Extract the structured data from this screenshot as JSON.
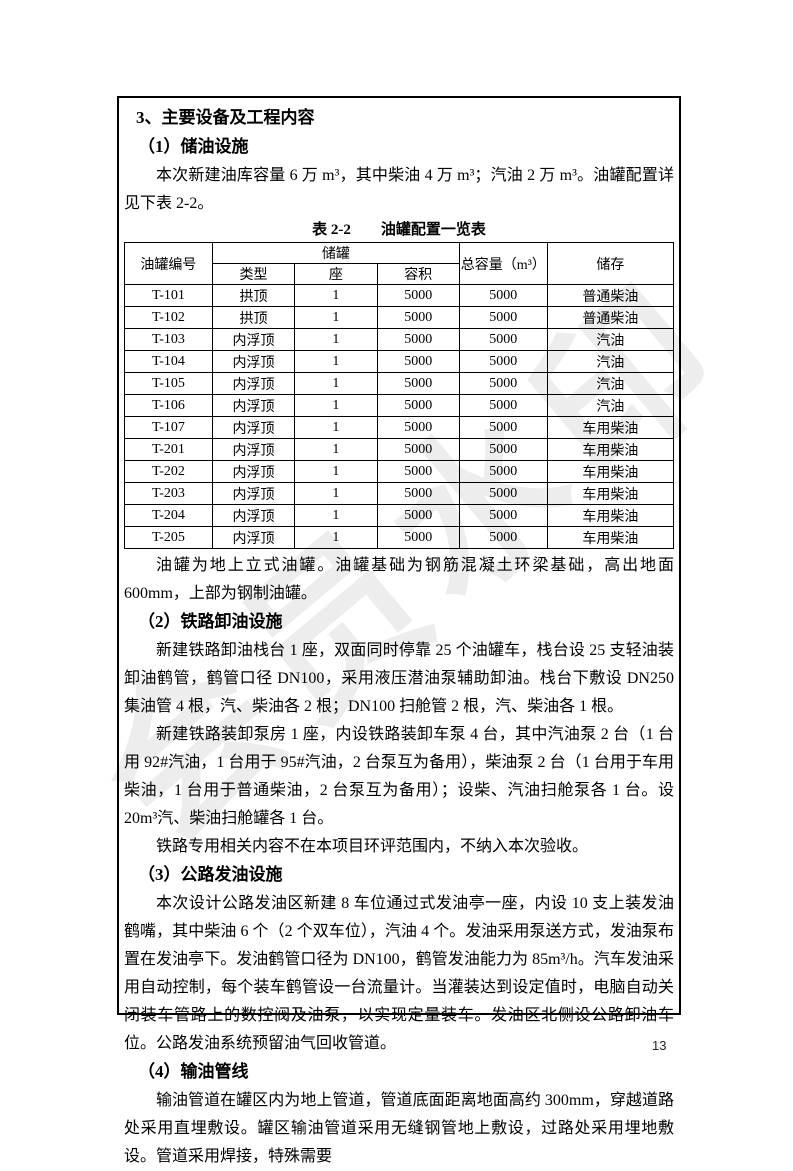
{
  "page": {
    "number": "13",
    "watermark": "会员水印"
  },
  "doc": {
    "section3_title": "3、主要设备及工程内容",
    "sub1_title": "（1）储油设施",
    "p_storage": "本次新建油库容量 6 万 m³，其中柴油 4 万 m³；汽油 2 万 m³。油罐配置详见下表 2-2。",
    "table": {
      "caption": "表 2-2　　油罐配置一览表",
      "header": {
        "col_tank_no": "油罐编号",
        "group_storage_tank": "储罐",
        "sub_type": "类型",
        "sub_count": "座",
        "sub_volume": "容积",
        "col_total": "总容量（m³）",
        "col_stored": "储存"
      },
      "rows": [
        [
          "T-101",
          "拱顶",
          "1",
          "5000",
          "5000",
          "普通柴油"
        ],
        [
          "T-102",
          "拱顶",
          "1",
          "5000",
          "5000",
          "普通柴油"
        ],
        [
          "T-103",
          "内浮顶",
          "1",
          "5000",
          "5000",
          "汽油"
        ],
        [
          "T-104",
          "内浮顶",
          "1",
          "5000",
          "5000",
          "汽油"
        ],
        [
          "T-105",
          "内浮顶",
          "1",
          "5000",
          "5000",
          "汽油"
        ],
        [
          "T-106",
          "内浮顶",
          "1",
          "5000",
          "5000",
          "汽油"
        ],
        [
          "T-107",
          "内浮顶",
          "1",
          "5000",
          "5000",
          "车用柴油"
        ],
        [
          "T-201",
          "内浮顶",
          "1",
          "5000",
          "5000",
          "车用柴油"
        ],
        [
          "T-202",
          "内浮顶",
          "1",
          "5000",
          "5000",
          "车用柴油"
        ],
        [
          "T-203",
          "内浮顶",
          "1",
          "5000",
          "5000",
          "车用柴油"
        ],
        [
          "T-204",
          "内浮顶",
          "1",
          "5000",
          "5000",
          "车用柴油"
        ],
        [
          "T-205",
          "内浮顶",
          "1",
          "5000",
          "5000",
          "车用柴油"
        ]
      ]
    },
    "p_foundation": "油罐为地上立式油罐。油罐基础为钢筋混凝土环梁基础，高出地面 600mm，上部为钢制油罐。",
    "sub2_title": "（2）铁路卸油设施",
    "p_rail_1": "新建铁路卸油栈台 1 座，双面同时停靠 25 个油罐车，栈台设 25 支轻油装卸油鹤管，鹤管口径 DN100，采用液压潜油泵辅助卸油。栈台下敷设 DN250 集油管 4 根，汽、柴油各 2 根；DN100 扫舱管 2 根，汽、柴油各 1 根。",
    "p_rail_2": "新建铁路装卸泵房 1 座，内设铁路装卸车泵 4 台，其中汽油泵 2 台（1 台用 92#汽油，1 台用于 95#汽油，2 台泵互为备用），柴油泵 2 台（1 台用于车用柴油，1 台用于普通柴油，2 台泵互为备用）；设柴、汽油扫舱泵各 1 台。设 20m³汽、柴油扫舱罐各 1 台。",
    "p_rail_3": "铁路专用相关内容不在本项目环评范围内，不纳入本次验收。",
    "sub3_title": "（3）公路发油设施",
    "p_road_1": "本次设计公路发油区新建 8 车位通过式发油亭一座，内设 10 支上装发油鹤嘴，其中柴油 6 个（2 个双车位），汽油 4 个。发油采用泵送方式，发油泵布置在发油亭下。发油鹤管口径为 DN100，鹤管发油能力为 85m³/h。汽车发油采用自动控制，每个装车鹤管设一台流量计。当灌装达到设定值时，电脑自动关闭装车管路上的数控阀及油泵，以实现定量装车。发油区北侧设公路卸油车位。公路发油系统预留油气回收管道。",
    "sub4_title": "（4）输油管线",
    "p_pipe_1": "输油管道在罐区内为地上管道，管道底面距离地面高约 300mm，穿越道路处采用直埋敷设。罐区输油管道采用无缝钢管地上敷设，过路处采用埋地敷设。管道采用焊接，特殊需要"
  }
}
